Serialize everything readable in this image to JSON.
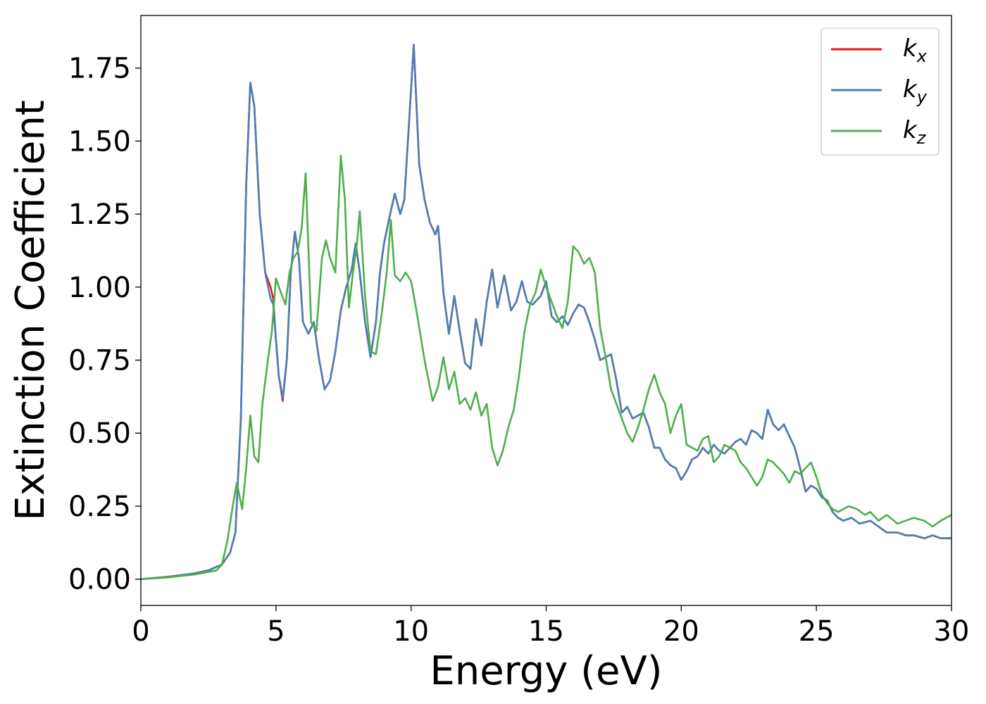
{
  "chart_data": {
    "type": "line",
    "title": "",
    "xlabel": "Energy (eV)",
    "ylabel": "Extinction Coefficient",
    "xlim": [
      0,
      30
    ],
    "ylim": [
      -0.09,
      1.93
    ],
    "xticks": [
      0,
      5,
      10,
      15,
      20,
      25,
      30
    ],
    "xtick_labels": [
      "0",
      "5",
      "10",
      "15",
      "20",
      "25",
      "30"
    ],
    "yticks": [
      0,
      0.25,
      0.5,
      0.75,
      1.0,
      1.25,
      1.5,
      1.75
    ],
    "ytick_labels": [
      "0.00",
      "0.25",
      "0.50",
      "0.75",
      "1.00",
      "1.25",
      "1.50",
      "1.75"
    ],
    "grid": false,
    "legend_position": "top-right",
    "series": [
      {
        "name": "k_x",
        "base": "k",
        "sub": "x",
        "color": "#e41a1c",
        "x": [
          0,
          1,
          2,
          2.5,
          3,
          3.3,
          3.5,
          3.7,
          3.9,
          4.05,
          4.2,
          4.4,
          4.6,
          4.8,
          4.9,
          5.0,
          5.1,
          5.25,
          5.4,
          5.55,
          5.7,
          5.85,
          6.0,
          6.2,
          6.4,
          6.6,
          6.8,
          7.0,
          7.2,
          7.4,
          7.6,
          7.8,
          7.95,
          8.1,
          8.3,
          8.5,
          8.7,
          8.85,
          9.0,
          9.2,
          9.4,
          9.6,
          9.75,
          9.95,
          10.1,
          10.3,
          10.5,
          10.7,
          10.9,
          11.0,
          11.2,
          11.4,
          11.6,
          11.8,
          12.0,
          12.2,
          12.4,
          12.6,
          12.8,
          13.0,
          13.2,
          13.45,
          13.7,
          13.9,
          14.1,
          14.3,
          14.5,
          14.8,
          15.0,
          15.2,
          15.4,
          15.6,
          15.8,
          16.0,
          16.2,
          16.4,
          16.6,
          16.8,
          17.0,
          17.2,
          17.4,
          17.6,
          17.8,
          18.0,
          18.2,
          18.4,
          18.6,
          18.8,
          19.0,
          19.2,
          19.4,
          19.6,
          19.8,
          20.0,
          20.2,
          20.4,
          20.6,
          20.8,
          21.0,
          21.2,
          21.4,
          21.6,
          21.8,
          22.0,
          22.2,
          22.4,
          22.6,
          22.8,
          23.0,
          23.2,
          23.4,
          23.6,
          23.8,
          24.0,
          24.2,
          24.4,
          24.6,
          24.8,
          25.0,
          25.2,
          25.4,
          25.6,
          25.8,
          26.0,
          26.3,
          26.6,
          27.0,
          27.3,
          27.6,
          28.0,
          28.3,
          28.6,
          29.0,
          29.3,
          29.6,
          30.0
        ],
        "y": [
          0.0,
          0.008,
          0.02,
          0.03,
          0.05,
          0.09,
          0.16,
          0.55,
          1.35,
          1.7,
          1.62,
          1.25,
          1.05,
          1.0,
          0.96,
          0.82,
          0.7,
          0.61,
          0.75,
          1.05,
          1.19,
          1.1,
          0.88,
          0.84,
          0.88,
          0.75,
          0.65,
          0.68,
          0.78,
          0.92,
          1.0,
          1.06,
          1.15,
          1.05,
          0.88,
          0.76,
          0.88,
          1.05,
          1.15,
          1.24,
          1.32,
          1.25,
          1.3,
          1.6,
          1.83,
          1.42,
          1.3,
          1.22,
          1.18,
          1.21,
          0.98,
          0.84,
          0.97,
          0.85,
          0.74,
          0.72,
          0.89,
          0.8,
          0.95,
          1.06,
          0.93,
          1.04,
          0.92,
          0.95,
          1.02,
          0.95,
          0.94,
          0.97,
          1.02,
          0.9,
          0.88,
          0.9,
          0.87,
          0.91,
          0.94,
          0.93,
          0.88,
          0.82,
          0.75,
          0.76,
          0.77,
          0.68,
          0.57,
          0.59,
          0.55,
          0.56,
          0.57,
          0.52,
          0.45,
          0.45,
          0.41,
          0.39,
          0.38,
          0.34,
          0.37,
          0.41,
          0.42,
          0.45,
          0.43,
          0.46,
          0.44,
          0.43,
          0.45,
          0.47,
          0.48,
          0.46,
          0.51,
          0.5,
          0.48,
          0.58,
          0.53,
          0.51,
          0.53,
          0.49,
          0.45,
          0.38,
          0.3,
          0.32,
          0.31,
          0.28,
          0.27,
          0.23,
          0.21,
          0.2,
          0.21,
          0.19,
          0.2,
          0.18,
          0.16,
          0.16,
          0.15,
          0.15,
          0.14,
          0.15,
          0.14,
          0.14
        ]
      },
      {
        "name": "k_y",
        "base": "k",
        "sub": "y",
        "color": "#4a7fb5",
        "x": [
          0,
          1,
          2,
          2.5,
          3,
          3.3,
          3.5,
          3.7,
          3.9,
          4.05,
          4.2,
          4.4,
          4.6,
          4.8,
          4.9,
          5.0,
          5.1,
          5.25,
          5.4,
          5.55,
          5.7,
          5.85,
          6.0,
          6.2,
          6.4,
          6.6,
          6.8,
          7.0,
          7.2,
          7.4,
          7.6,
          7.8,
          7.95,
          8.1,
          8.3,
          8.5,
          8.7,
          8.85,
          9.0,
          9.2,
          9.4,
          9.6,
          9.75,
          9.95,
          10.1,
          10.3,
          10.5,
          10.7,
          10.9,
          11.0,
          11.2,
          11.4,
          11.6,
          11.8,
          12.0,
          12.2,
          12.4,
          12.6,
          12.8,
          13.0,
          13.2,
          13.45,
          13.7,
          13.9,
          14.1,
          14.3,
          14.5,
          14.8,
          15.0,
          15.2,
          15.4,
          15.6,
          15.8,
          16.0,
          16.2,
          16.4,
          16.6,
          16.8,
          17.0,
          17.2,
          17.4,
          17.6,
          17.8,
          18.0,
          18.2,
          18.4,
          18.6,
          18.8,
          19.0,
          19.2,
          19.4,
          19.6,
          19.8,
          20.0,
          20.2,
          20.4,
          20.6,
          20.8,
          21.0,
          21.2,
          21.4,
          21.6,
          21.8,
          22.0,
          22.2,
          22.4,
          22.6,
          22.8,
          23.0,
          23.2,
          23.4,
          23.6,
          23.8,
          24.0,
          24.2,
          24.4,
          24.6,
          24.8,
          25.0,
          25.2,
          25.4,
          25.6,
          25.8,
          26.0,
          26.3,
          26.6,
          27.0,
          27.3,
          27.6,
          28.0,
          28.3,
          28.6,
          29.0,
          29.3,
          29.6,
          30.0
        ],
        "y": [
          0.0,
          0.008,
          0.02,
          0.03,
          0.05,
          0.09,
          0.16,
          0.55,
          1.35,
          1.7,
          1.62,
          1.25,
          1.05,
          0.96,
          0.94,
          0.82,
          0.7,
          0.62,
          0.75,
          1.05,
          1.19,
          1.1,
          0.88,
          0.84,
          0.88,
          0.75,
          0.65,
          0.68,
          0.78,
          0.92,
          1.0,
          1.06,
          1.15,
          1.05,
          0.88,
          0.76,
          0.88,
          1.05,
          1.15,
          1.24,
          1.32,
          1.25,
          1.3,
          1.6,
          1.83,
          1.42,
          1.3,
          1.22,
          1.18,
          1.21,
          0.98,
          0.84,
          0.97,
          0.85,
          0.74,
          0.72,
          0.89,
          0.8,
          0.95,
          1.06,
          0.93,
          1.04,
          0.92,
          0.95,
          1.02,
          0.95,
          0.94,
          0.97,
          1.02,
          0.9,
          0.88,
          0.9,
          0.87,
          0.91,
          0.94,
          0.93,
          0.88,
          0.82,
          0.75,
          0.76,
          0.77,
          0.68,
          0.57,
          0.59,
          0.55,
          0.56,
          0.57,
          0.52,
          0.45,
          0.45,
          0.41,
          0.39,
          0.38,
          0.34,
          0.37,
          0.41,
          0.42,
          0.45,
          0.43,
          0.46,
          0.44,
          0.43,
          0.45,
          0.47,
          0.48,
          0.46,
          0.51,
          0.5,
          0.48,
          0.58,
          0.53,
          0.51,
          0.53,
          0.49,
          0.45,
          0.38,
          0.3,
          0.32,
          0.31,
          0.28,
          0.27,
          0.23,
          0.21,
          0.2,
          0.21,
          0.19,
          0.2,
          0.18,
          0.16,
          0.16,
          0.15,
          0.15,
          0.14,
          0.15,
          0.14,
          0.14
        ]
      },
      {
        "name": "k_z",
        "base": "k",
        "sub": "z",
        "color": "#4daf4a",
        "x": [
          0,
          1,
          2,
          2.5,
          2.8,
          3.0,
          3.2,
          3.4,
          3.55,
          3.75,
          3.9,
          4.05,
          4.2,
          4.35,
          4.5,
          4.7,
          4.85,
          5.0,
          5.15,
          5.35,
          5.5,
          5.65,
          5.8,
          5.95,
          6.1,
          6.3,
          6.5,
          6.7,
          6.85,
          7.0,
          7.2,
          7.4,
          7.55,
          7.7,
          7.85,
          8.0,
          8.1,
          8.3,
          8.5,
          8.7,
          8.9,
          9.1,
          9.25,
          9.4,
          9.6,
          9.8,
          10.0,
          10.2,
          10.5,
          10.8,
          11.0,
          11.2,
          11.4,
          11.6,
          11.8,
          12.0,
          12.2,
          12.4,
          12.6,
          12.8,
          13.0,
          13.2,
          13.4,
          13.6,
          13.8,
          14.0,
          14.2,
          14.4,
          14.6,
          14.8,
          15.0,
          15.2,
          15.4,
          15.6,
          15.8,
          16.0,
          16.2,
          16.4,
          16.6,
          16.8,
          17.0,
          17.2,
          17.4,
          17.6,
          17.8,
          18.0,
          18.2,
          18.4,
          18.6,
          18.8,
          19.0,
          19.2,
          19.4,
          19.6,
          19.8,
          20.0,
          20.2,
          20.4,
          20.6,
          20.8,
          21.0,
          21.2,
          21.4,
          21.6,
          21.8,
          22.0,
          22.2,
          22.4,
          22.6,
          22.8,
          23.0,
          23.2,
          23.4,
          23.6,
          23.8,
          24.0,
          24.2,
          24.4,
          24.6,
          24.8,
          25.0,
          25.2,
          25.4,
          25.6,
          25.8,
          26.0,
          26.2,
          26.5,
          26.8,
          27.0,
          27.3,
          27.6,
          28.0,
          28.3,
          28.6,
          29.0,
          29.3,
          29.6,
          30.0
        ],
        "y": [
          0.0,
          0.006,
          0.016,
          0.025,
          0.03,
          0.05,
          0.13,
          0.25,
          0.33,
          0.24,
          0.38,
          0.56,
          0.42,
          0.4,
          0.6,
          0.75,
          0.85,
          1.03,
          0.99,
          0.94,
          1.05,
          1.1,
          1.12,
          1.2,
          1.39,
          0.88,
          0.85,
          1.1,
          1.16,
          1.1,
          1.05,
          1.45,
          1.3,
          0.93,
          1.05,
          1.15,
          1.26,
          0.97,
          0.78,
          0.77,
          0.9,
          1.05,
          1.23,
          1.04,
          1.02,
          1.05,
          1.02,
          0.92,
          0.75,
          0.61,
          0.66,
          0.76,
          0.65,
          0.71,
          0.6,
          0.62,
          0.58,
          0.64,
          0.56,
          0.6,
          0.45,
          0.39,
          0.44,
          0.52,
          0.58,
          0.7,
          0.85,
          0.94,
          0.98,
          1.06,
          1.0,
          0.95,
          0.9,
          0.86,
          0.95,
          1.14,
          1.12,
          1.08,
          1.1,
          1.05,
          0.86,
          0.76,
          0.65,
          0.6,
          0.55,
          0.5,
          0.47,
          0.52,
          0.58,
          0.65,
          0.7,
          0.64,
          0.6,
          0.5,
          0.56,
          0.6,
          0.46,
          0.45,
          0.44,
          0.48,
          0.49,
          0.4,
          0.42,
          0.46,
          0.45,
          0.44,
          0.4,
          0.38,
          0.35,
          0.32,
          0.35,
          0.41,
          0.4,
          0.38,
          0.36,
          0.33,
          0.37,
          0.36,
          0.38,
          0.4,
          0.35,
          0.29,
          0.26,
          0.24,
          0.23,
          0.24,
          0.25,
          0.24,
          0.22,
          0.23,
          0.2,
          0.22,
          0.19,
          0.2,
          0.21,
          0.2,
          0.18,
          0.2,
          0.22
        ]
      }
    ]
  }
}
